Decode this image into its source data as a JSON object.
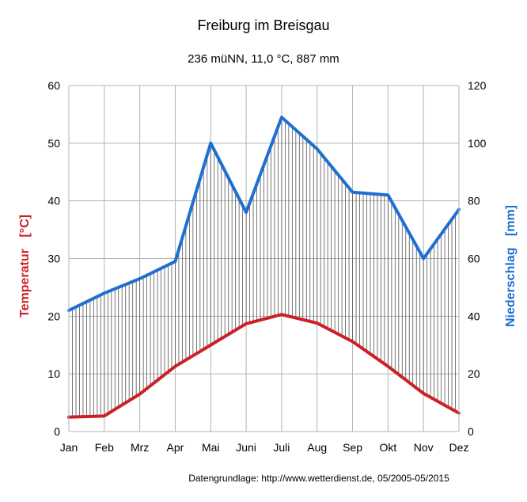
{
  "chart_data": {
    "type": "line",
    "title": "Freiburg im Breisgau",
    "subtitle": "236 müNN, 11,0 °C, 887 mm",
    "categories": [
      "Jan",
      "Feb",
      "Mrz",
      "Apr",
      "Mai",
      "Juni",
      "Juli",
      "Aug",
      "Sep",
      "Okt",
      "Nov",
      "Dez"
    ],
    "y_left": {
      "label_main": "Temperatur",
      "label_unit": "[°C]",
      "range": [
        0,
        60
      ],
      "ticks": [
        "0",
        "10",
        "20",
        "30",
        "40",
        "50",
        "60"
      ]
    },
    "y_right": {
      "label_main": "Niederschlag",
      "label_unit": "[mm]",
      "range": [
        0,
        120
      ],
      "ticks": [
        "0",
        "20",
        "40",
        "60",
        "80",
        "100",
        "120"
      ]
    },
    "series": [
      {
        "name": "Temperatur",
        "axis": "left",
        "color": "#cc1f26",
        "values": [
          2.5,
          2.7,
          6.5,
          11.3,
          15.0,
          18.7,
          20.3,
          18.8,
          15.6,
          11.3,
          6.6,
          3.2
        ]
      },
      {
        "name": "Niederschlag",
        "axis": "right",
        "color": "#1f6fd0",
        "values": [
          42,
          48,
          53,
          59,
          100,
          76,
          109,
          98,
          83,
          82,
          60,
          77
        ]
      }
    ],
    "hatch": "vertical lines between temperature and precipitation curves",
    "grid": true,
    "source": "Datengrundlage:  http://www.wetterdienst.de, 05/2005-05/2015"
  }
}
